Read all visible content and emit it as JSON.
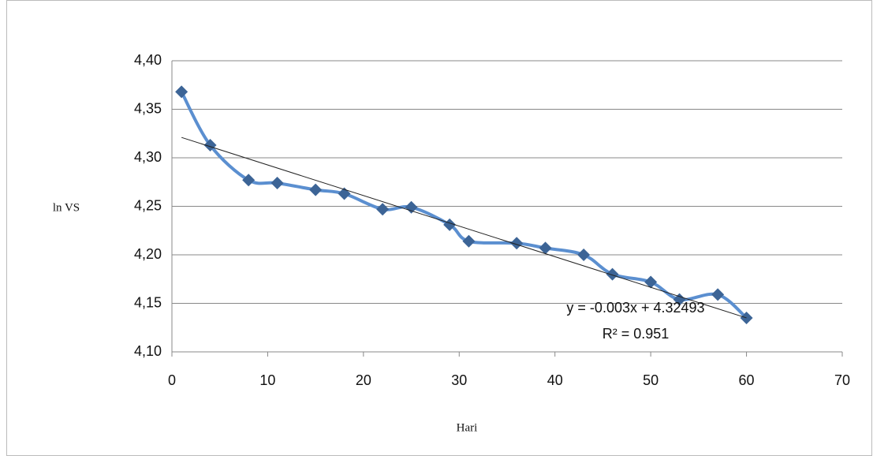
{
  "chart_data": {
    "type": "scatter",
    "x_label": "Hari",
    "y_label": "ln VS",
    "x": [
      1,
      4,
      8,
      11,
      15,
      18,
      22,
      25,
      29,
      31,
      36,
      39,
      43,
      46,
      50,
      53,
      57,
      60
    ],
    "series": [
      {
        "name": "ln VS",
        "color": "#5b8fd0",
        "marker_color": "#3c6496",
        "values": [
          4.368,
          4.313,
          4.277,
          4.274,
          4.267,
          4.263,
          4.247,
          4.249,
          4.231,
          4.214,
          4.212,
          4.207,
          4.2,
          4.18,
          4.172,
          4.154,
          4.159,
          4.135
        ]
      }
    ],
    "trendline": {
      "color": "#222222",
      "x": [
        1,
        60
      ],
      "values": [
        4.321,
        4.135
      ]
    },
    "annotations": [
      "y = -0.003x + 4.32493",
      "R² = 0.951"
    ],
    "xlim": [
      0,
      70
    ],
    "xticks": [
      0,
      10,
      20,
      30,
      40,
      50,
      60,
      70
    ],
    "ylim": [
      4.1,
      4.4
    ],
    "yticks": [
      {
        "value": 4.1,
        "label": "4,10"
      },
      {
        "value": 4.15,
        "label": "4,15"
      },
      {
        "value": 4.2,
        "label": "4,20"
      },
      {
        "value": 4.25,
        "label": "4,25"
      },
      {
        "value": 4.3,
        "label": "4,30"
      },
      {
        "value": 4.35,
        "label": "4,35"
      },
      {
        "value": 4.4,
        "label": "4,40"
      }
    ],
    "grid": true,
    "smooth": true
  }
}
